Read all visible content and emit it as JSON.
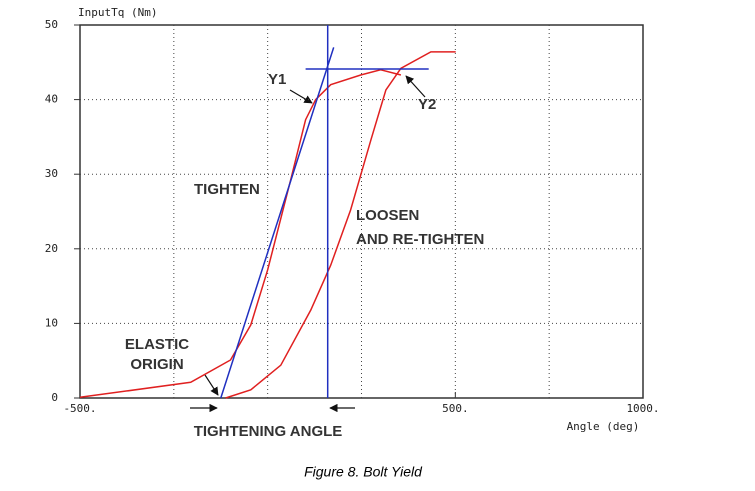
{
  "chart_data": {
    "type": "line",
    "ylabel": "InputTq (Nm)",
    "xlabel": "Angle (deg)",
    "caption": "Figure 8. Bolt Yield",
    "xlim": [
      -500,
      1000
    ],
    "ylim": [
      0,
      50
    ],
    "xticks": [
      {
        "value": -500,
        "label": "-500."
      },
      {
        "value": 500,
        "label": "500."
      },
      {
        "value": 1000,
        "label": "1000."
      }
    ],
    "yticks": [
      0,
      10,
      20,
      30,
      40,
      50
    ],
    "xgrid": [
      -250,
      0,
      250,
      500,
      750
    ],
    "grid": true,
    "series": [
      {
        "color": "#e02020",
        "x": [
          -500,
          -205,
          -99,
          -45,
          0,
          61,
          101,
          128,
          168,
          248,
          301,
          355
        ],
        "values": [
          0.1,
          2.1,
          5.1,
          9.8,
          17.2,
          29.2,
          37.3,
          40,
          42,
          43.3,
          44,
          43.3
        ]
      },
      {
        "color": "#e02020",
        "x": [
          -112,
          -45,
          35,
          115,
          168,
          221,
          275,
          315,
          355,
          435,
          501
        ],
        "values": [
          0,
          1.1,
          4.4,
          11.8,
          17.8,
          25.2,
          34.6,
          41.3,
          44.2,
          46.4,
          46.4
        ]
      },
      {
        "color": "#2030c0",
        "x": [
          -125,
          176
        ],
        "values": [
          0,
          47
        ]
      },
      {
        "color": "#2030c0",
        "x": [
          160,
          160
        ],
        "values": [
          0,
          50
        ]
      },
      {
        "color": "#2030c0",
        "x": [
          101,
          429
        ],
        "values": [
          44.1,
          44.1
        ]
      }
    ],
    "annotations": {
      "y1": "Y1",
      "y2": "Y2",
      "tighten": "TIGHTEN",
      "loosen": [
        "LOOSEN",
        "AND RE-TIGHTEN"
      ],
      "elastic": [
        "ELASTIC",
        "ORIGIN"
      ],
      "angle": "TIGHTENING ANGLE"
    }
  }
}
